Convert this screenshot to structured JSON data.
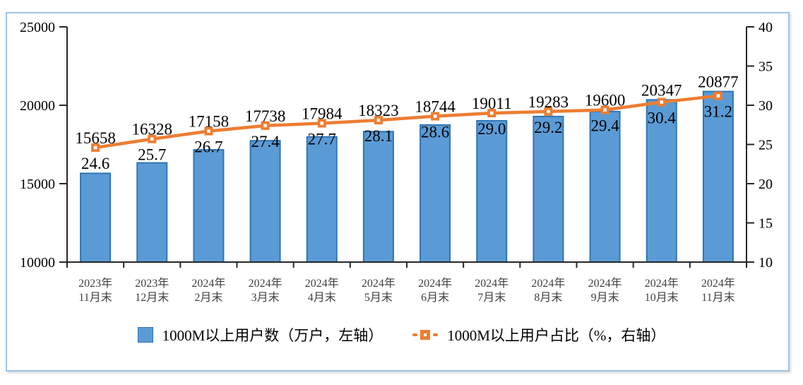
{
  "chart_data": {
    "type": "bar+line",
    "categories": [
      {
        "line1": "2023年",
        "line2": "11月末"
      },
      {
        "line1": "2023年",
        "line2": "12月末"
      },
      {
        "line1": "2024年",
        "line2": "2月末"
      },
      {
        "line1": "2024年",
        "line2": "3月末"
      },
      {
        "line1": "2024年",
        "line2": "4月末"
      },
      {
        "line1": "2024年",
        "line2": "5月末"
      },
      {
        "line1": "2024年",
        "line2": "6月末"
      },
      {
        "line1": "2024年",
        "line2": "7月末"
      },
      {
        "line1": "2024年",
        "line2": "8月末"
      },
      {
        "line1": "2024年",
        "line2": "9月末"
      },
      {
        "line1": "2024年",
        "line2": "10月末"
      },
      {
        "line1": "2024年",
        "line2": "11月末"
      }
    ],
    "series": [
      {
        "name": "1000M以上用户数（万户，左轴）",
        "type": "bar",
        "axis": "left",
        "color": "#5B9BD5",
        "border_color": "#2E75B6",
        "values": [
          15658,
          16328,
          17158,
          17738,
          17984,
          18323,
          18744,
          19011,
          19283,
          19600,
          20347,
          20877
        ]
      },
      {
        "name": "1000M以上用户占比（%，右轴）",
        "type": "line",
        "axis": "right",
        "color": "#ED7D31",
        "marker": "square-hollow",
        "values": [
          "24.6",
          "25.7",
          "26.7",
          "27.4",
          "27.7",
          "28.1",
          "28.6",
          "29.0",
          "29.2",
          "29.4",
          "30.4",
          "31.2"
        ]
      }
    ],
    "left_axis": {
      "min": 10000,
      "max": 25000,
      "ticks": [
        25000,
        20000,
        15000,
        10000
      ]
    },
    "right_axis": {
      "min": 10,
      "max": 40,
      "ticks": [
        40,
        35,
        30,
        25,
        20,
        15,
        10
      ]
    },
    "grid": false,
    "legend_position": "bottom",
    "axis_color": "#262626",
    "x_label_color": "#3F3F3F",
    "frame_border_color": "#9DC3E6"
  }
}
